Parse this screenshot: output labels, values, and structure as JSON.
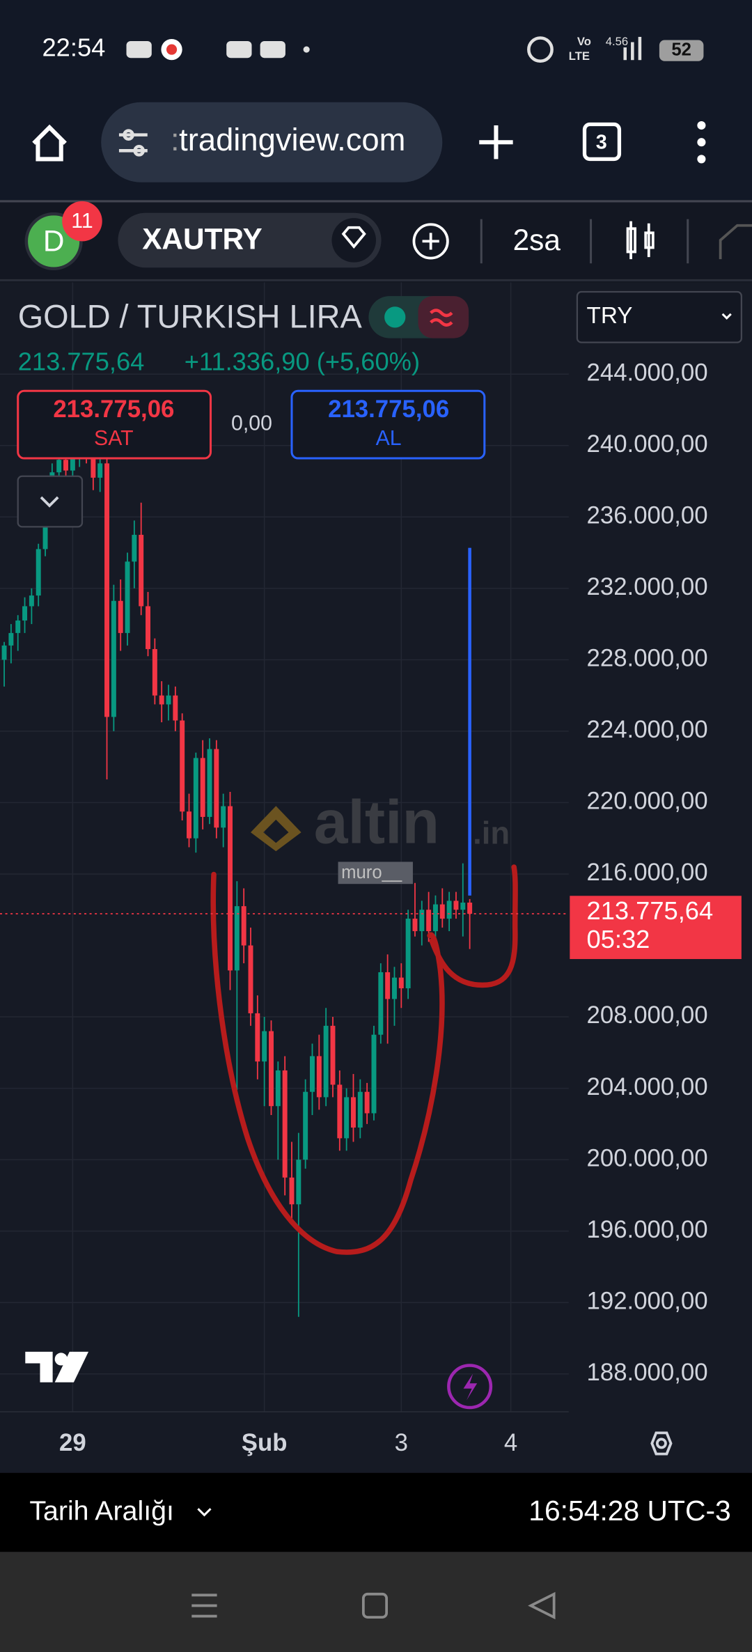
{
  "status_bar": {
    "time": "22:54",
    "volte_top": "Vo",
    "volte_bottom": "LTE",
    "speed": "4.56",
    "battery": "52"
  },
  "browser": {
    "url": "tradingview.com",
    "tab_count": "3"
  },
  "toolbar": {
    "avatar": "D",
    "notifications": "11",
    "symbol": "XAUTRY",
    "interval": "2sa"
  },
  "header": {
    "title": "GOLD / TURKISH LIRA",
    "price": "213.775,64",
    "change": "+11.336,90 (+5,60%)",
    "sell_price": "213.775,06",
    "sell_label": "SAT",
    "spread": "0,00",
    "buy_price": "213.775,06",
    "buy_label": "AL",
    "currency": "TRY"
  },
  "watermark": {
    "brand": "altin",
    "suffix": ".in",
    "user": "muro__"
  },
  "chart_data": {
    "type": "candlestick",
    "up_color": "#089981",
    "down_color": "#f23645",
    "ylim": [
      185880,
      249140
    ],
    "yticks": [
      {
        "value": 188000,
        "label": "188.000,00"
      },
      {
        "value": 192000,
        "label": "192.000,00"
      },
      {
        "value": 196000,
        "label": "196.000,00"
      },
      {
        "value": 200000,
        "label": "200.000,00"
      },
      {
        "value": 204000,
        "label": "204.000,00"
      },
      {
        "value": 208000,
        "label": "208.000,00"
      },
      {
        "value": 216000,
        "label": "216.000,00"
      },
      {
        "value": 220000,
        "label": "220.000,00"
      },
      {
        "value": 224000,
        "label": "224.000,00"
      },
      {
        "value": 228000,
        "label": "228.000,00"
      },
      {
        "value": 232000,
        "label": "232.000,00"
      },
      {
        "value": 236000,
        "label": "236.000,00"
      },
      {
        "value": 240000,
        "label": "240.000,00"
      },
      {
        "value": 244000,
        "label": "244.000,00"
      }
    ],
    "grid": true,
    "categories": [
      null,
      null,
      null,
      null,
      null,
      null,
      null,
      null,
      null,
      null,
      "29",
      null,
      null,
      null,
      null,
      null,
      null,
      null,
      null,
      null,
      null,
      null,
      null,
      null,
      null,
      null,
      null,
      null,
      null,
      null,
      null,
      null,
      null,
      null,
      null,
      null,
      null,
      null,
      "Şub",
      null,
      null,
      null,
      null,
      null,
      null,
      null,
      null,
      null,
      null,
      null,
      null,
      null,
      null,
      null,
      null,
      null,
      null,
      null,
      "3",
      null,
      null,
      null,
      null,
      null,
      null,
      null,
      null,
      null,
      null,
      null,
      null,
      null,
      null,
      null,
      "4"
    ],
    "open": [
      228000,
      228800,
      229500,
      230200,
      231000,
      231600,
      234200,
      237000,
      238500,
      239200,
      238600,
      239500,
      240200,
      239400,
      238200,
      239000,
      224800,
      231300,
      229500,
      233500,
      235000,
      231000,
      228600,
      226000,
      225500,
      226000,
      224600,
      219500,
      218000,
      222500,
      219200,
      223000,
      218600,
      219800,
      210600,
      214200,
      212000,
      208200,
      205500,
      207200,
      203000,
      205000,
      199000,
      197500,
      200000,
      203800,
      205800,
      203500,
      207500,
      204200,
      201200,
      203500,
      201800,
      203800,
      202600,
      207000,
      210500,
      209000,
      210200,
      209600,
      213500,
      212800,
      214000,
      212800,
      214300,
      213500,
      214500,
      214000,
      214400,
      null,
      null,
      null,
      null,
      null,
      null
    ],
    "high": [
      229000,
      230000,
      230500,
      231500,
      232000,
      234500,
      237500,
      239000,
      240000,
      240500,
      239800,
      241000,
      241200,
      240500,
      239800,
      239500,
      232200,
      232500,
      234000,
      235800,
      236800,
      231800,
      229200,
      226800,
      226600,
      226500,
      225000,
      220500,
      222800,
      223500,
      223600,
      223500,
      220500,
      220600,
      215600,
      215200,
      213000,
      209200,
      208000,
      207800,
      205500,
      205800,
      201000,
      201500,
      204500,
      206500,
      207000,
      208500,
      208000,
      205000,
      204000,
      204800,
      204500,
      204300,
      207500,
      211000,
      211500,
      210800,
      211000,
      214000,
      215500,
      214500,
      215000,
      214800,
      215200,
      215000,
      215000,
      216600,
      214600,
      null,
      null,
      null,
      null,
      null,
      null
    ],
    "low": [
      226500,
      227800,
      228500,
      229500,
      230000,
      231000,
      233800,
      236000,
      237500,
      238200,
      237600,
      238800,
      239000,
      237500,
      237400,
      221300,
      224000,
      228500,
      228800,
      232000,
      230500,
      228200,
      225500,
      224500,
      224600,
      224000,
      219000,
      217500,
      217200,
      218500,
      218800,
      218000,
      217500,
      209500,
      203900,
      211000,
      207500,
      204500,
      203000,
      202500,
      200000,
      198000,
      196500,
      191200,
      199500,
      202500,
      202800,
      203000,
      203500,
      200500,
      200500,
      201000,
      201200,
      202000,
      202200,
      206500,
      206500,
      207500,
      208500,
      209000,
      212500,
      212000,
      212200,
      212000,
      213000,
      212800,
      213500,
      212500,
      211800,
      null,
      null,
      null,
      null,
      null,
      null
    ],
    "close": [
      228800,
      229500,
      230200,
      231000,
      231600,
      234200,
      237000,
      238500,
      239200,
      238600,
      239500,
      240200,
      239400,
      238200,
      239000,
      224800,
      231300,
      229500,
      233500,
      235000,
      231000,
      228600,
      226000,
      225500,
      226000,
      224600,
      219500,
      218000,
      222500,
      219200,
      223000,
      218600,
      219800,
      210600,
      214200,
      212000,
      208200,
      205500,
      207200,
      203000,
      205000,
      199000,
      197500,
      200000,
      203800,
      205800,
      203500,
      207500,
      204200,
      201200,
      203500,
      201800,
      203800,
      202600,
      207000,
      210500,
      209000,
      210200,
      209600,
      213500,
      212800,
      214000,
      212800,
      214300,
      213500,
      214500,
      214000,
      214400,
      213775.64,
      null,
      null,
      null,
      null,
      null,
      null
    ],
    "last_price": {
      "value": 213775.64,
      "label": "213.775,64"
    },
    "countdown": "05:32"
  },
  "footer": {
    "range": "Tarih Aralığı",
    "clock": "16:54:28 UTC-3"
  }
}
